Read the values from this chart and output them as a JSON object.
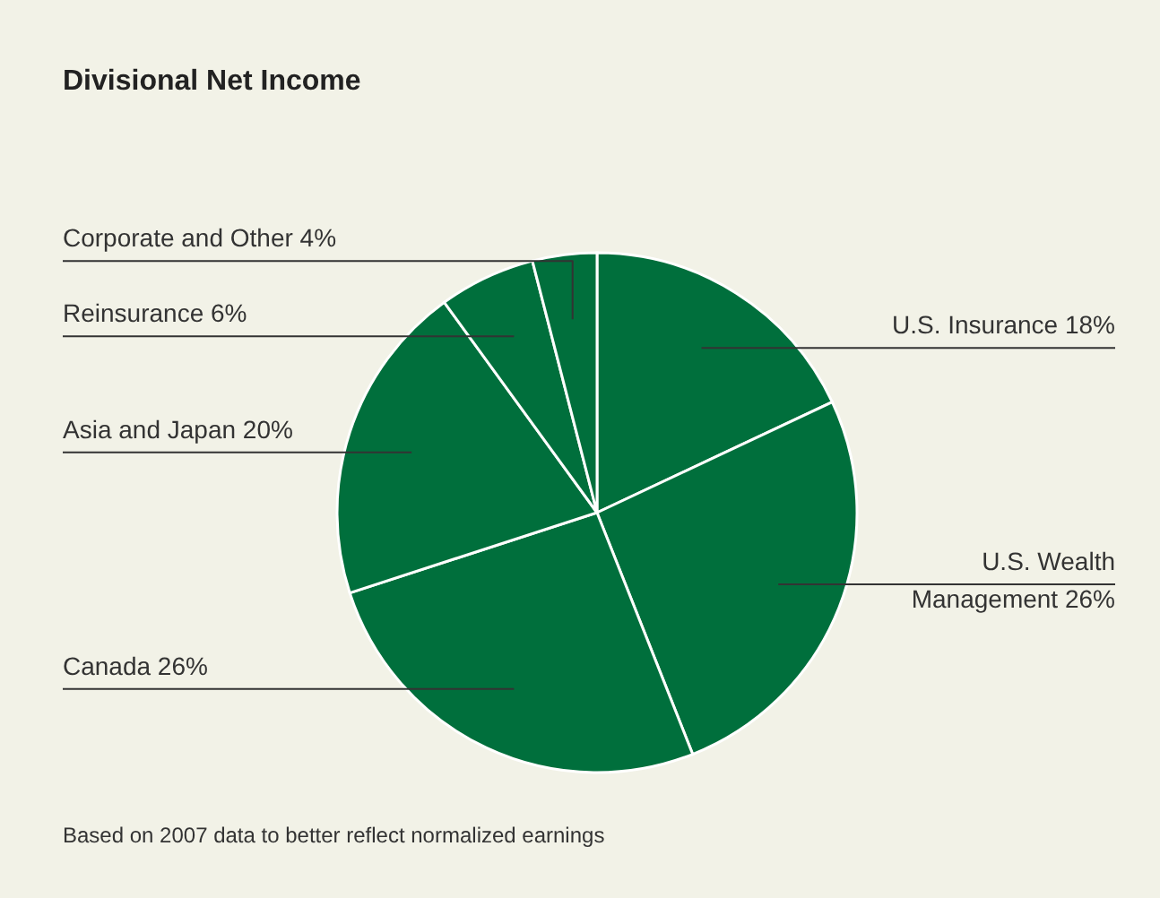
{
  "chart_data": {
    "type": "pie",
    "title": "Divisional Net Income",
    "categories": [
      "U.S. Insurance",
      "U.S. Wealth Management",
      "Canada",
      "Asia and Japan",
      "Reinsurance",
      "Corporate and Other"
    ],
    "values": [
      18,
      26,
      26,
      20,
      6,
      4
    ],
    "value_labels": [
      "18%",
      "26%",
      "26%",
      "20%",
      "6%",
      "4%"
    ],
    "colors": [
      "#006f3c",
      "#006f3c",
      "#006f3c",
      "#006f3c",
      "#006f3c",
      "#006f3c"
    ],
    "annotations": [
      "Based on 2007 data to better reflect normalized earnings"
    ]
  }
}
